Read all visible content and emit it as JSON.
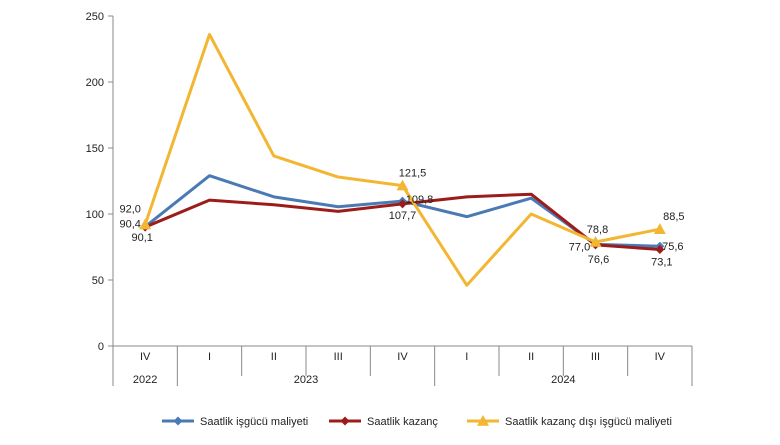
{
  "chart_data": {
    "type": "line",
    "title": "",
    "xlabel": "",
    "ylabel": "",
    "ylim": [
      0,
      250
    ],
    "yticks": [
      "0",
      "50",
      "100",
      "150",
      "200",
      "250"
    ],
    "grid": false,
    "legend_position": "bottom",
    "categories": [
      "IV",
      "I",
      "II",
      "III",
      "IV",
      "I",
      "II",
      "III",
      "IV"
    ],
    "year_groups": [
      {
        "label": "2022",
        "count": 1
      },
      {
        "label": "2023",
        "count": 4
      },
      {
        "label": "2024",
        "count": 4
      }
    ],
    "series": [
      {
        "name": "Saatlik işgücü maliyeti",
        "color": "#4a7ab3",
        "marker": "diamond",
        "values": [
          90.4,
          129,
          113,
          105.5,
          109.8,
          98,
          112,
          77.0,
          75.6
        ]
      },
      {
        "name": "Saatlik kazanç",
        "color": "#9c1c1c",
        "marker": "diamond",
        "values": [
          90.1,
          110.5,
          107,
          102,
          107.7,
          113,
          115,
          76.6,
          73.1
        ]
      },
      {
        "name": "Saatlik kazanç dışı işgücü maliyeti",
        "color": "#f2b632",
        "marker": "triangle",
        "values": [
          92.0,
          236,
          144,
          128,
          121.5,
          46,
          100,
          78.8,
          88.5
        ]
      }
    ],
    "data_labels": [
      {
        "text": "92,0",
        "series": 2,
        "index": 0
      },
      {
        "text": "90,4",
        "series": 0,
        "index": 0
      },
      {
        "text": "90,1",
        "series": 1,
        "index": 0
      },
      {
        "text": "121,5",
        "series": 2,
        "index": 4
      },
      {
        "text": "109,8",
        "series": 0,
        "index": 4
      },
      {
        "text": "107,7",
        "series": 1,
        "index": 4
      },
      {
        "text": "78,8",
        "series": 2,
        "index": 7
      },
      {
        "text": "77,0",
        "series": 0,
        "index": 7
      },
      {
        "text": "76,6",
        "series": 1,
        "index": 7
      },
      {
        "text": "88,5",
        "series": 2,
        "index": 8
      },
      {
        "text": "75,6",
        "series": 0,
        "index": 8
      },
      {
        "text": "73,1",
        "series": 1,
        "index": 8
      }
    ]
  }
}
